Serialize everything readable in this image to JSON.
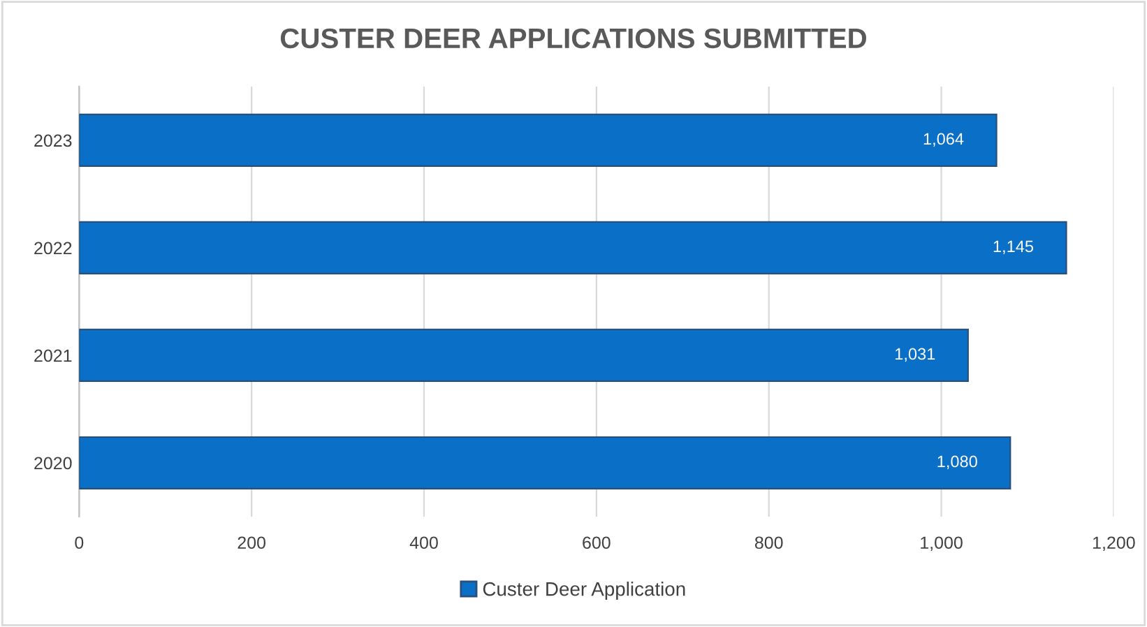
{
  "chart_data": {
    "type": "bar",
    "orientation": "horizontal",
    "title": "CUSTER DEER APPLICATIONS SUBMITTED",
    "categories": [
      "2023",
      "2022",
      "2021",
      "2020"
    ],
    "series": [
      {
        "name": "Custer Deer Application",
        "color": "#0a6fc6",
        "values": [
          1064,
          1145,
          1031,
          1080
        ],
        "value_labels": [
          "1,064",
          "1,145",
          "1,031",
          "1,080"
        ]
      }
    ],
    "xlim": [
      0,
      1200
    ],
    "xticks": [
      0,
      200,
      400,
      600,
      800,
      {
        "value": 1000,
        "label": "1,000"
      },
      {
        "value": 1200,
        "label": "1,200"
      }
    ],
    "grid": "x",
    "legend": "bottom"
  }
}
